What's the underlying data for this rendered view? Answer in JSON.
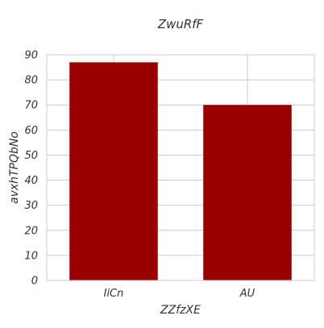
{
  "chart_data": {
    "type": "bar",
    "title": "ZwuRfF",
    "xlabel": "ZZfzXE",
    "ylabel": "avxhTPQbNo",
    "categories": [
      "IiCn",
      "AU"
    ],
    "values": [
      87,
      70
    ],
    "ylim": [
      0,
      90
    ],
    "yticks": [
      "0",
      "10",
      "20",
      "30",
      "40",
      "50",
      "60",
      "70",
      "80",
      "90"
    ],
    "grid": true,
    "bar_color": "#990000"
  }
}
